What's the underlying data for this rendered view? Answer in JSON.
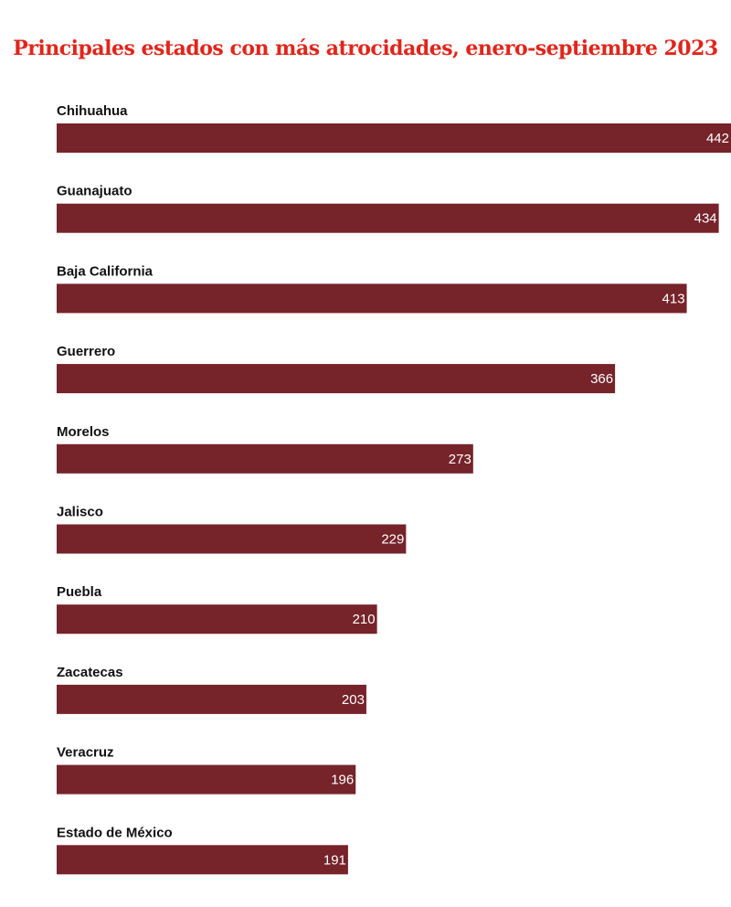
{
  "chart_data": {
    "type": "bar",
    "orientation": "horizontal",
    "title": "Principales estados con más atrocidades, enero-septiembre 2023",
    "categories": [
      "Chihuahua",
      "Guanajuato",
      "Baja California",
      "Guerrero",
      "Morelos",
      "Jalisco",
      "Puebla",
      "Zacatecas",
      "Veracruz",
      "Estado de México"
    ],
    "values": [
      442,
      434,
      413,
      366,
      273,
      229,
      210,
      203,
      196,
      191
    ],
    "xlabel": "",
    "ylabel": "",
    "xlim": [
      0,
      442
    ],
    "grid": false,
    "legend": "none",
    "bar_color": "#76232a",
    "title_color": "#e1251b"
  }
}
